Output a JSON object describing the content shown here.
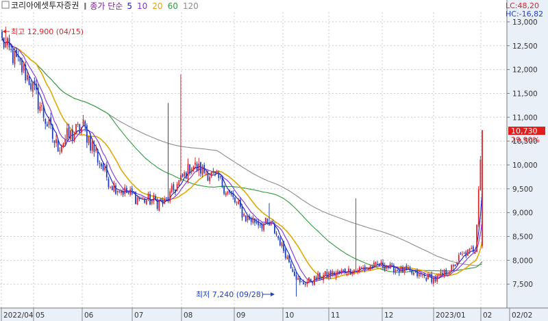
{
  "chart_data": {
    "type": "candlestick",
    "title": "코리아에셋투자증권",
    "legend": {
      "label": "종가 단순",
      "periods": [
        {
          "text": "5",
          "color": "#1515c8"
        },
        {
          "text": "10",
          "color": "#8a2be2"
        },
        {
          "text": "20",
          "color": "#e0a800"
        },
        {
          "text": "60",
          "color": "#2e9b3c"
        },
        {
          "text": "120",
          "color": "#8c8c8c"
        }
      ]
    },
    "colors": {
      "up": "#d7262b",
      "down": "#1f3fbf",
      "axis_bg": "#eaf0f8",
      "grid": "#c9c9c9",
      "price_tag_bg": "#e0201f"
    },
    "ylim": [
      7000,
      13200
    ],
    "y_ticks": [
      "13,000",
      "12,500",
      "12,000",
      "11,500",
      "11,000",
      "10,500",
      "10,000",
      "9,500",
      "9,000",
      "8,500",
      "8,000",
      "7,500"
    ],
    "x_ticks": [
      "2022/04",
      "05",
      "06",
      "07",
      "08",
      "09",
      "10",
      "11",
      "12",
      "2023/01",
      "02",
      "02/02"
    ],
    "annotations": {
      "high_label": "최고 12,900 (04/15)",
      "low_label": "최저 7,240 (09/28)",
      "lc": "LC:48,20",
      "hc": "HC:-16,82",
      "last_price": "10,730",
      "last_change": "29,90%"
    },
    "anchors": {
      "x": [
        0,
        15,
        30,
        45,
        60,
        75,
        90,
        105,
        120,
        135,
        150,
        165,
        180,
        195,
        210,
        225,
        240,
        250,
        253,
        262,
        266
      ],
      "close": [
        12600,
        11800,
        10400,
        10800,
        9600,
        9300,
        9200,
        10000,
        9700,
        8900,
        8700,
        7500,
        7700,
        7800,
        7900,
        7750,
        7600,
        7850,
        8050,
        8250,
        10730
      ]
    },
    "highest": {
      "index": 2,
      "value": 12900
    },
    "lowest": {
      "index": 163,
      "value": 7240
    },
    "spikes": [
      {
        "index": 92,
        "high": 11300
      },
      {
        "index": 99,
        "high": 11900
      },
      {
        "index": 148,
        "high": 9200
      },
      {
        "index": 196,
        "high": 9300
      }
    ]
  }
}
